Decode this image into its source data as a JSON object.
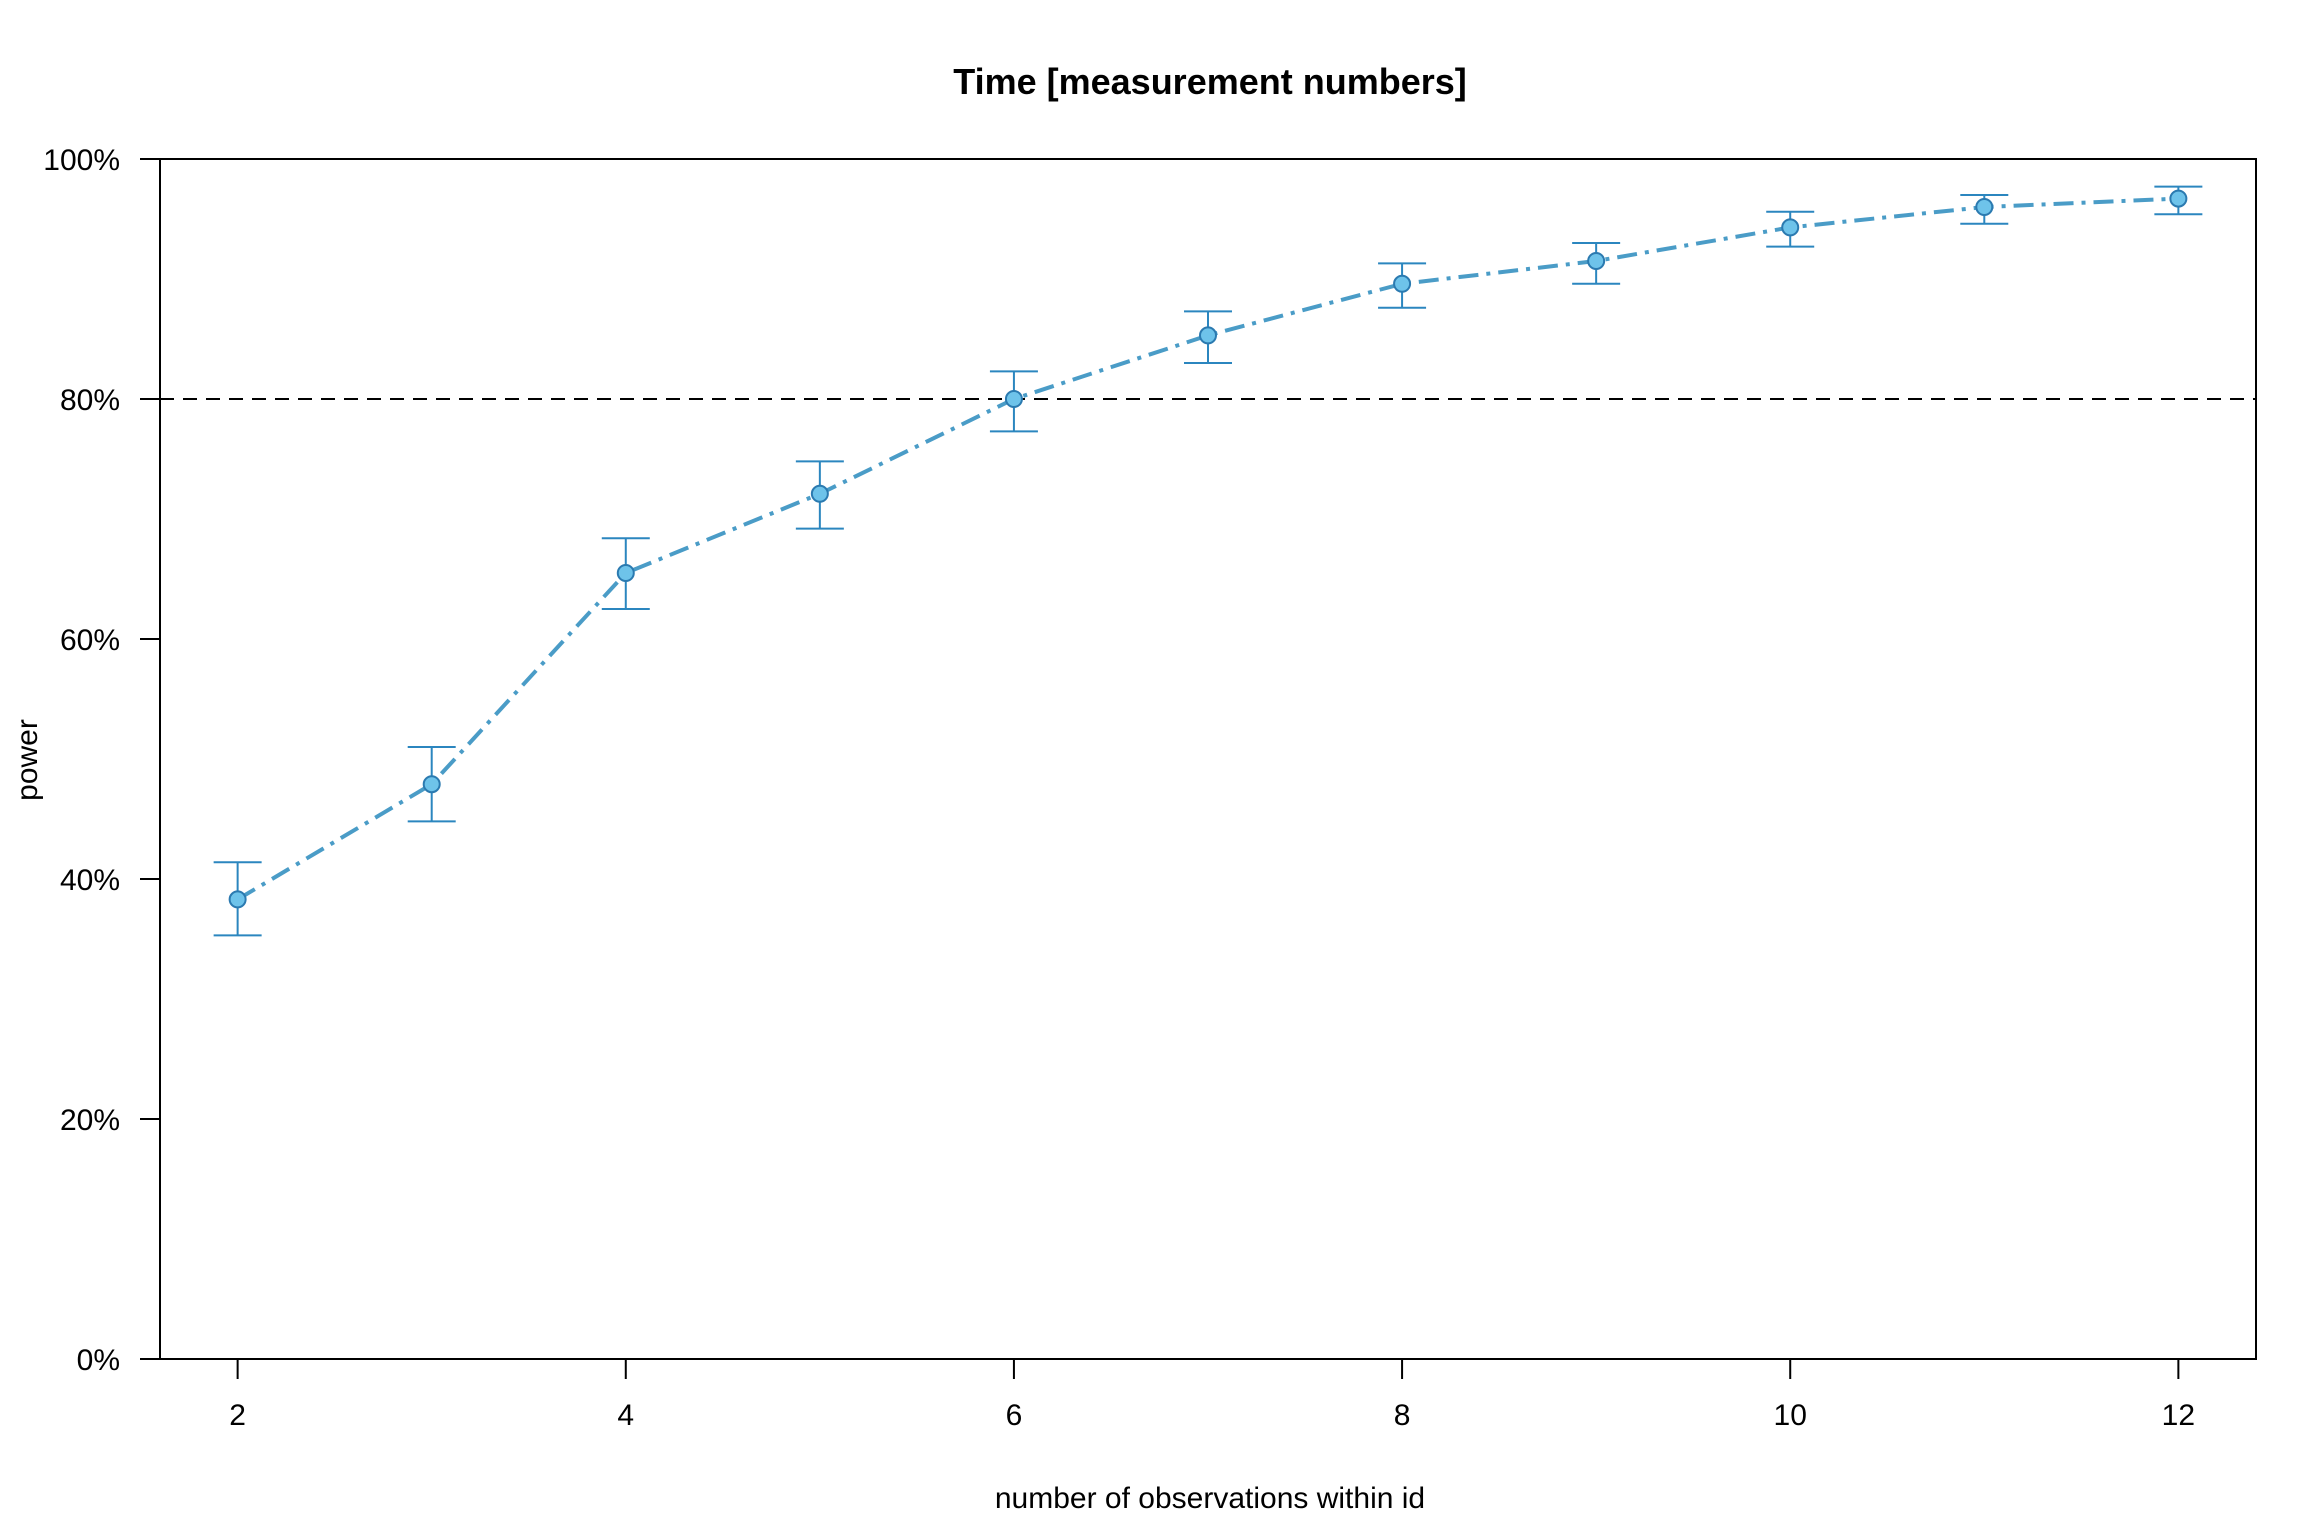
{
  "chart_data": {
    "type": "line",
    "title": "Time [measurement numbers]",
    "xlabel": "number of observations within id",
    "ylabel": "power",
    "x": [
      2,
      3,
      4,
      5,
      6,
      7,
      8,
      9,
      10,
      11,
      12
    ],
    "series": [
      {
        "values": [
          38.3,
          47.9,
          65.5,
          72.1,
          80.0,
          85.3,
          89.6,
          91.5,
          94.3,
          96.0,
          96.7
        ],
        "lower": [
          35.3,
          44.8,
          62.5,
          69.2,
          77.3,
          83.0,
          87.6,
          89.6,
          92.7,
          94.6,
          95.4
        ],
        "upper": [
          41.4,
          51.0,
          68.4,
          74.8,
          82.3,
          87.3,
          91.3,
          93.0,
          95.6,
          97.0,
          97.7
        ]
      }
    ],
    "xlim": [
      1.6,
      12.4
    ],
    "ylim": [
      0,
      100
    ],
    "x_ticks": [
      2,
      4,
      6,
      8,
      10,
      12
    ],
    "y_ticks": [
      0,
      20,
      40,
      60,
      80,
      100
    ],
    "y_tick_labels": [
      "0%",
      "20%",
      "40%",
      "60%",
      "80%",
      "100%"
    ],
    "reference_line": 80,
    "grid": false,
    "colors": {
      "line": "#4a9cc7",
      "errorbar": "#2b86bf",
      "point_fill": "#6ec3ea",
      "point_stroke": "#2b7ab0",
      "reference": "#000000"
    }
  }
}
